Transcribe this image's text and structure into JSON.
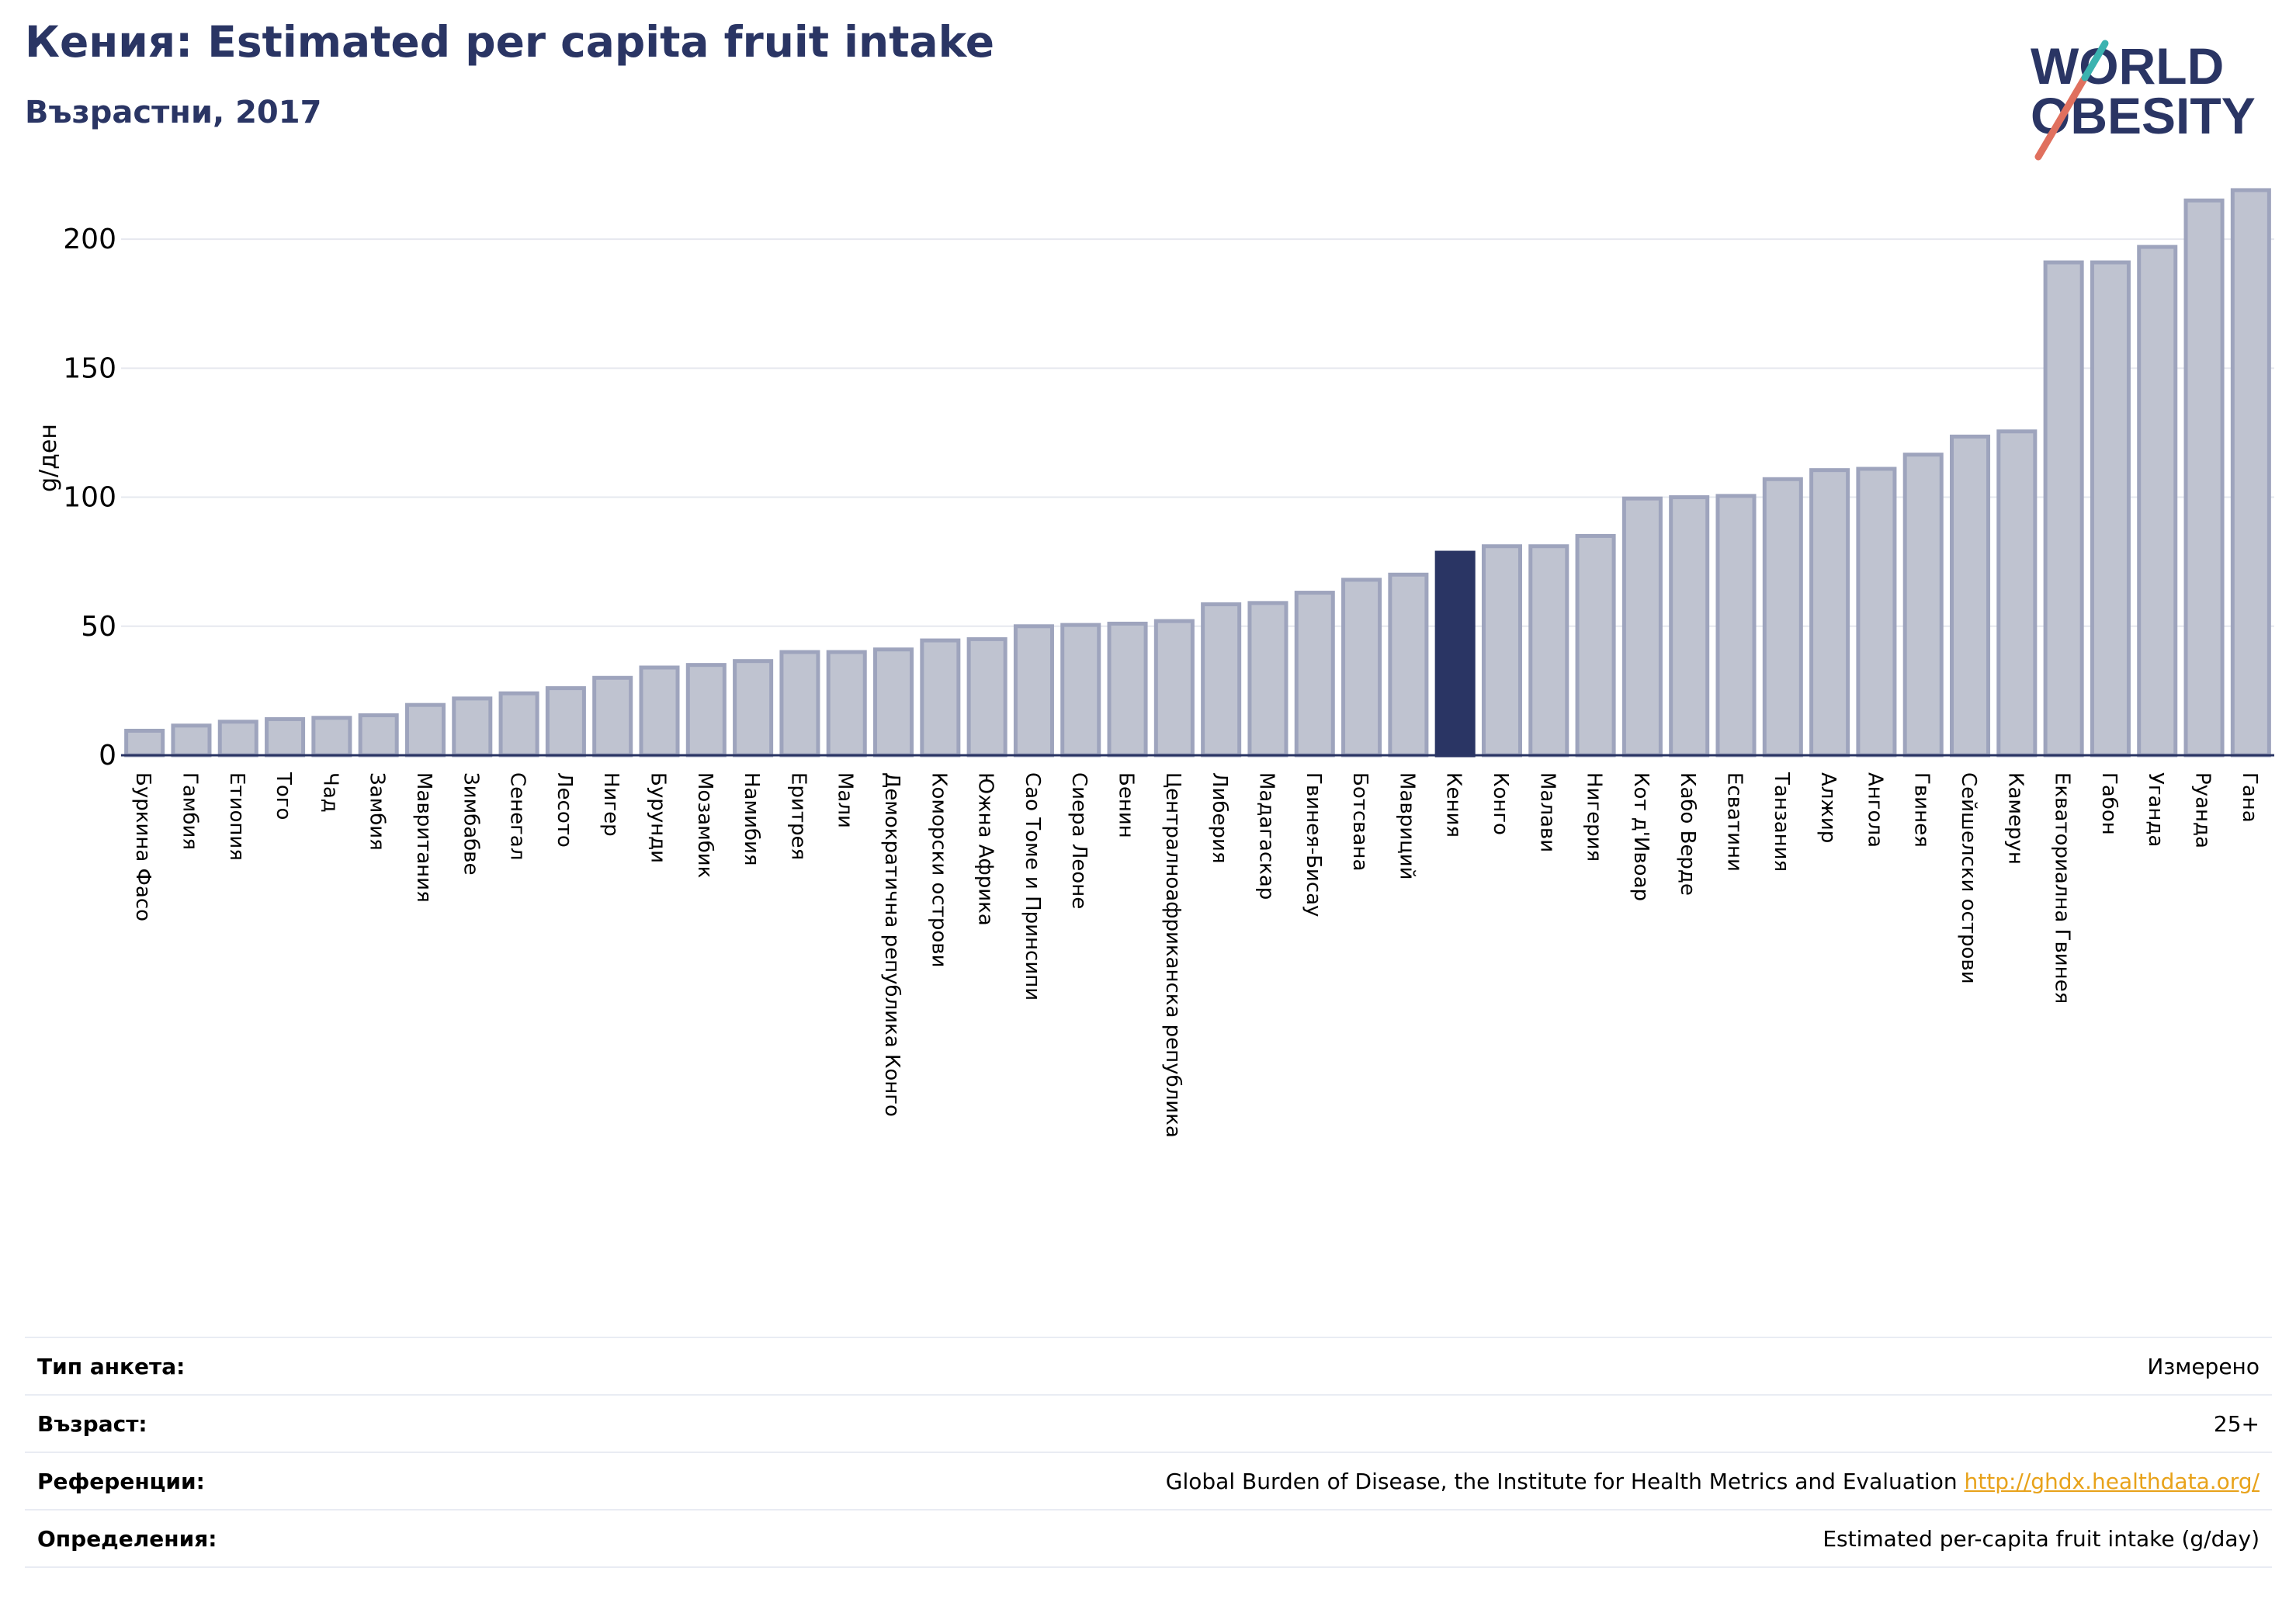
{
  "header": {
    "title": "Кения: Estimated per capita fruit intake",
    "subtitle": "Възрастни, 2017"
  },
  "logo": {
    "line1": "WORLD",
    "line2": "OBESITY"
  },
  "colors": {
    "bar": "#bfc3d0",
    "bar_border": "#9ea4bd",
    "highlight": "#2a3564",
    "grid": "#e6e8ef",
    "title": "#2a3564",
    "link": "#e8a21a",
    "logo_teal": "#3bb3b0",
    "logo_red": "#e0705e"
  },
  "chart_data": {
    "type": "bar",
    "ylabel": "g/ден",
    "ylim": [
      0,
      225
    ],
    "yticks": [
      0,
      50,
      100,
      150,
      200
    ],
    "grid": true,
    "highlight": "Кения",
    "categories": [
      "Буркина Фасо",
      "Гамбия",
      "Етиопия",
      "Того",
      "Чад",
      "Замбия",
      "Мавритания",
      "Зимбабве",
      "Сенегал",
      "Лесото",
      "Нигер",
      "Бурунди",
      "Мозамбик",
      "Намибия",
      "Еритрея",
      "Мали",
      "Демократична република Конго",
      "Коморски острови",
      "Южна Африка",
      "Сао Томе и Принсипи",
      "Сиера Леоне",
      "Бенин",
      "Централноафриканска република",
      "Либерия",
      "Мадагаскар",
      "Гвинея-Бисау",
      "Ботсвана",
      "Мавриций",
      "Кения",
      "Конго",
      "Малави",
      "Нигерия",
      "Кот д'Ивоар",
      "Кабо Верде",
      "Есватини",
      "Танзания",
      "Алжир",
      "Ангола",
      "Гвинея",
      "Сейшелски острови",
      "Камерун",
      "Екваториална Гвинея",
      "Габон",
      "Уганда",
      "Руанда",
      "Гана"
    ],
    "values": [
      9.5,
      11.5,
      13,
      14,
      14.5,
      15.5,
      19.5,
      22,
      24,
      26,
      30,
      34,
      35,
      36.5,
      40,
      40,
      41,
      44.5,
      45,
      50,
      50.5,
      51,
      52,
      58.5,
      59,
      63,
      68,
      70,
      78.5,
      81,
      81,
      85,
      99.5,
      100,
      100.5,
      107,
      110.5,
      111,
      116.5,
      123.5,
      125.5,
      191,
      191,
      197,
      215,
      219
    ]
  },
  "info": {
    "rows": [
      {
        "label": "Тип анкета:",
        "value": "Измерено"
      },
      {
        "label": "Възраст:",
        "value": "25+"
      },
      {
        "label": "Референции:",
        "value": "Global Burden of Disease, the Institute for Health Metrics and Evaluation ",
        "link": "http://ghdx.healthdata.org/"
      },
      {
        "label": "Определения:",
        "value": "Estimated per-capita fruit intake (g/day)"
      }
    ]
  }
}
